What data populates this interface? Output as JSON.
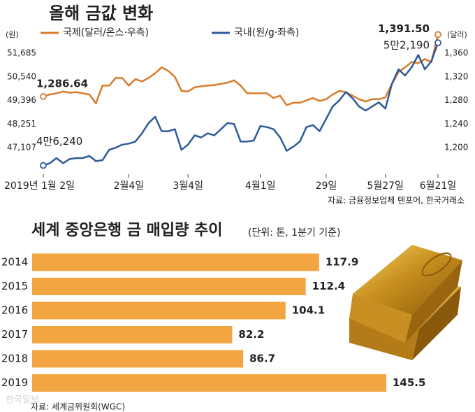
{
  "chart_data": [
    {
      "type": "line",
      "title": "올해 금값 변화",
      "y_unit": "(원)",
      "y2_unit": "(달러)",
      "categories": [
        "2019년 1월 2일",
        null,
        null,
        null,
        null,
        null,
        null,
        null,
        null,
        null,
        null,
        null,
        null,
        "2월4일",
        null,
        null,
        null,
        null,
        null,
        null,
        null,
        null,
        "3월4일",
        null,
        null,
        null,
        null,
        null,
        null,
        null,
        null,
        null,
        null,
        "4월1일",
        null,
        null,
        null,
        null,
        null,
        null,
        null,
        null,
        null,
        "29일",
        null,
        null,
        null,
        null,
        null,
        null,
        null,
        null,
        "5월27일",
        null,
        null,
        null,
        null,
        null,
        null,
        null,
        "6월21일"
      ],
      "series": [
        {
          "name": "국제(달러/온스·우측)",
          "color": "#d97b2b",
          "axis": "y2",
          "values": [
            1286.64,
            1290,
            1292,
            1295,
            1293,
            1294,
            1292,
            1290,
            1275,
            1305,
            1305,
            1318,
            1318,
            1305,
            1316,
            1312,
            1318,
            1326,
            1336,
            1330,
            1320,
            1296,
            1295,
            1302,
            1304,
            1305,
            1306,
            1308,
            1310,
            1314,
            1305,
            1292,
            1292,
            1292,
            1292,
            1284,
            1288,
            1272,
            1276,
            1276,
            1280,
            1284,
            1279,
            1282,
            1290,
            1296,
            1294,
            1288,
            1282,
            1278,
            1282,
            1282,
            1285,
            1308,
            1328,
            1336,
            1345,
            1343,
            1350,
            1345,
            1391.5
          ],
          "value_labels": [
            "1,286.64",
            null,
            null,
            null,
            null,
            null,
            null,
            null,
            null,
            null,
            null,
            null,
            null,
            null,
            null,
            null,
            null,
            null,
            null,
            null,
            null,
            null,
            null,
            null,
            null,
            null,
            null,
            null,
            null,
            null,
            null,
            null,
            null,
            null,
            null,
            null,
            null,
            null,
            null,
            null,
            null,
            null,
            null,
            null,
            null,
            null,
            null,
            null,
            null,
            null,
            null,
            null,
            null,
            null,
            null,
            null,
            null,
            null,
            null,
            null,
            "1,391.50"
          ]
        },
        {
          "name": "국내(원/g·좌측)",
          "color": "#2d5a9b",
          "values": [
            46240,
            46350,
            46600,
            46350,
            46550,
            46600,
            46600,
            46700,
            46450,
            46500,
            47000,
            47100,
            47250,
            47300,
            47400,
            47800,
            48300,
            48600,
            47900,
            47900,
            48000,
            47000,
            47250,
            47700,
            47600,
            47800,
            47700,
            48000,
            48300,
            48250,
            47400,
            47400,
            47450,
            48150,
            48100,
            48000,
            47600,
            46950,
            47150,
            47400,
            48100,
            48200,
            47900,
            48500,
            49100,
            49400,
            49800,
            49500,
            49100,
            48900,
            49100,
            49300,
            49000,
            50200,
            50900,
            50600,
            51000,
            51600,
            50900,
            51300,
            52190
          ],
          "value_labels": [
            "4만6,240",
            null,
            null,
            null,
            null,
            null,
            null,
            null,
            null,
            null,
            null,
            null,
            null,
            null,
            null,
            null,
            null,
            null,
            null,
            null,
            null,
            null,
            null,
            null,
            null,
            null,
            null,
            null,
            null,
            null,
            null,
            null,
            null,
            null,
            null,
            null,
            null,
            null,
            null,
            null,
            null,
            null,
            null,
            null,
            null,
            null,
            null,
            null,
            null,
            null,
            null,
            null,
            null,
            null,
            null,
            null,
            null,
            null,
            null,
            null,
            "5만2,190"
          ]
        }
      ],
      "ylim": [
        45962.5,
        52829.5
      ],
      "yticks": [
        {
          "value": 47107,
          "label": "47,107"
        },
        {
          "value": 48251,
          "label": "48,251"
        },
        {
          "value": 49396,
          "label": "49,396"
        },
        {
          "value": 50540,
          "label": "50,540"
        },
        {
          "value": 51685,
          "label": "51,685"
        }
      ],
      "y2lim": [
        1160,
        1400
      ],
      "y2ticks": [
        {
          "value": 1200,
          "label": "1,200"
        },
        {
          "value": 1240,
          "label": "1,240"
        },
        {
          "value": 1280,
          "label": "1,280"
        },
        {
          "value": 1320,
          "label": "1,320"
        },
        {
          "value": 1360,
          "label": "1,360"
        }
      ],
      "source": "자료: 금융정보업체 텐포어, 한국거래소"
    },
    {
      "type": "hbar",
      "title": "세계 중앙은행 금 매입량 추이",
      "subtitle": "(단위: 톤, 1분기 기준)",
      "categories": [
        "2014",
        "2015",
        "2016",
        "2017",
        "2018",
        "2019"
      ],
      "values": [
        117.9,
        112.4,
        104.1,
        82.2,
        86.7,
        145.5
      ],
      "color": "#f2a541",
      "source": "자료: 세계금위원회(WGC)",
      "watermark": "한국일보"
    }
  ]
}
